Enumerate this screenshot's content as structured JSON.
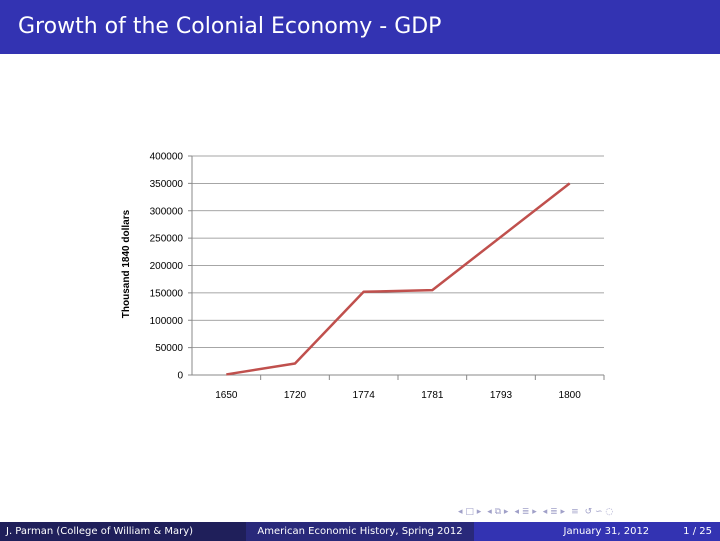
{
  "slide": {
    "title": "Growth of the Colonial Economy - GDP"
  },
  "footer": {
    "author": "J. Parman  (College of William & Mary)",
    "course": "American Economic History, Spring 2012",
    "date": "January 31, 2012",
    "page": "1 / 25"
  },
  "colors": {
    "title_bar": "#3333b2",
    "line": "#c0504d",
    "grid": "#888888"
  },
  "chart_data": {
    "type": "line",
    "categories": [
      "1650",
      "1720",
      "1774",
      "1781",
      "1793",
      "1800"
    ],
    "series": [
      {
        "values": [
          1000,
          21000,
          152000,
          155000,
          null,
          350000
        ]
      }
    ],
    "title": "",
    "xlabel": "",
    "ylabel": "Thousand 1840 dollars",
    "ylim": [
      0,
      400000
    ],
    "yticks": [
      "0",
      "50000",
      "100000",
      "150000",
      "200000",
      "250000",
      "300000",
      "350000",
      "400000"
    ],
    "grid": true,
    "legend": "none"
  }
}
